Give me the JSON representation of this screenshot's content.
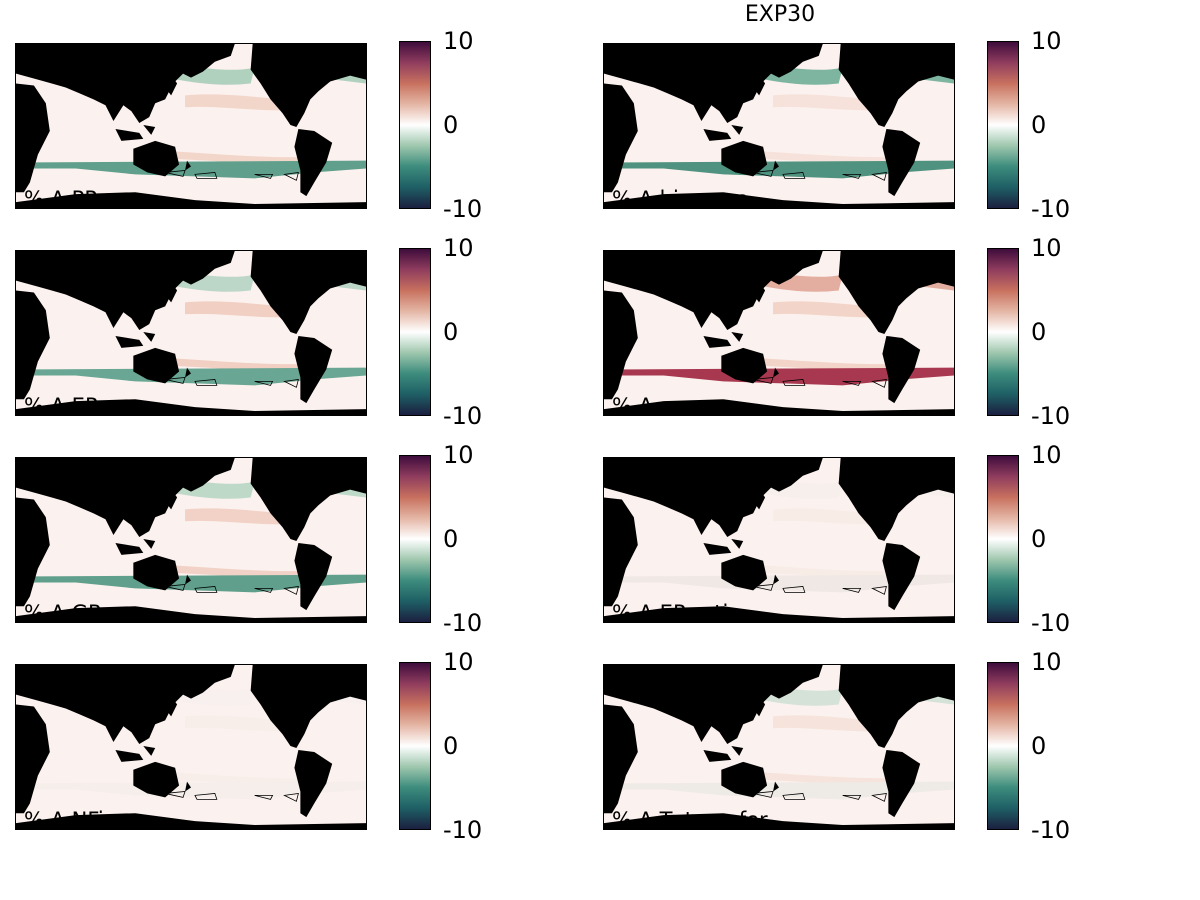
{
  "figure_title": "EXP30",
  "colormap": {
    "name": "diverging teal-white-red",
    "stops": [
      "#1b1f3f",
      "#1e5f65",
      "#3d8c7d",
      "#9fc7ae",
      "#ffffff",
      "#e4b6a5",
      "#c8715f",
      "#903d5e",
      "#3e0c3c"
    ],
    "land_color": "#000000",
    "ocean_base_color": "#fbf1ee"
  },
  "chart_data": [
    {
      "type": "heatmap",
      "label": "% Δ PP",
      "colorbar_ticks": [
        "10",
        "0",
        "-10"
      ],
      "vmin": -10,
      "vmax": 10
    },
    {
      "type": "heatmap",
      "label": "% Δ biomass",
      "colorbar_ticks": [
        "10",
        "0",
        "-10"
      ],
      "vmin": -10,
      "vmax": 10
    },
    {
      "type": "heatmap",
      "label": "% Δ EP",
      "colorbar_ticks": [
        "10",
        "0",
        "-10"
      ],
      "vmin": -10,
      "vmax": 10
    },
    {
      "type": "heatmap",
      "label": "% Δ zoo",
      "colorbar_ticks": [
        "10",
        "0",
        "-10"
      ],
      "vmin": -10,
      "vmax": 10
    },
    {
      "type": "heatmap",
      "label": "% Δ GR",
      "colorbar_ticks": [
        "10",
        "0",
        "-10"
      ],
      "vmin": -10,
      "vmax": 10
    },
    {
      "type": "heatmap",
      "label": "% Δ EP-ratio",
      "colorbar_ticks": [
        "10",
        "0",
        "-10"
      ],
      "vmin": -10,
      "vmax": 10
    },
    {
      "type": "heatmap",
      "label": "% Δ NFix",
      "colorbar_ticks": [
        "10",
        "0",
        "-10"
      ],
      "vmin": -10,
      "vmax": 10
    },
    {
      "type": "heatmap",
      "label": "% Δ Tr transfer",
      "colorbar_ticks": [
        "10",
        "0",
        "-10"
      ],
      "vmin": -10,
      "vmax": 10
    }
  ],
  "panel_tints": [
    {
      "south_band": "#5f9f8c",
      "north": "#a9cdb9",
      "eq": "#f3d6ca"
    },
    {
      "south_band": "#4f927f",
      "north": "#6fae98",
      "eq": "#f6e2da"
    },
    {
      "south_band": "#6aa694",
      "north": "#b5d3c2",
      "eq": "#f1cfc2"
    },
    {
      "south_band": "#a8384f",
      "north": "#e0a696",
      "eq": "#f3d4c8"
    },
    {
      "south_band": "#5f9f8c",
      "north": "#b8d6c4",
      "eq": "#f2d2c6"
    },
    {
      "south_band": "#f0e8e4",
      "north": "#f5eeeb",
      "eq": "#f8ece7"
    },
    {
      "south_band": "#f5eeeb",
      "north": "#f7f0ed",
      "eq": "#f8eee9"
    },
    {
      "south_band": "#eeeae6",
      "north": "#cfe0d4",
      "eq": "#f6e4dc"
    }
  ]
}
